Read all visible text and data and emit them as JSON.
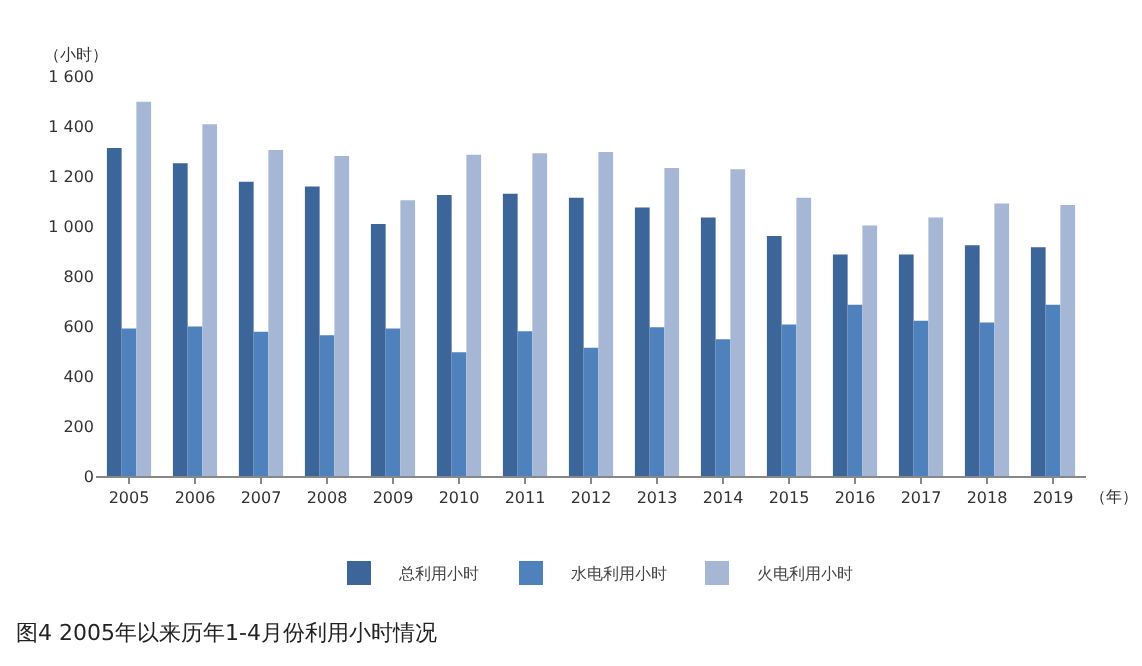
{
  "chart_data": {
    "type": "bar",
    "categories": [
      "2005",
      "2006",
      "2007",
      "2008",
      "2009",
      "2010",
      "2011",
      "2012",
      "2013",
      "2014",
      "2015",
      "2016",
      "2017",
      "2018",
      "2019"
    ],
    "series": [
      {
        "name": "总利用小时",
        "color": "#3c6699",
        "values": [
          1312,
          1251,
          1177,
          1158,
          1008,
          1124,
          1129,
          1113,
          1074,
          1034,
          960,
          886,
          886,
          923,
          915
        ]
      },
      {
        "name": "水电利用小时",
        "color": "#4f81bd",
        "values": [
          590,
          598,
          577,
          563,
          590,
          495,
          579,
          513,
          595,
          547,
          606,
          685,
          621,
          614,
          685
        ]
      },
      {
        "name": "火电利用小时",
        "color": "#a6b7d6",
        "values": [
          1497,
          1407,
          1304,
          1280,
          1103,
          1285,
          1291,
          1296,
          1232,
          1227,
          1113,
          1002,
          1034,
          1090,
          1084
        ]
      }
    ],
    "ylabel": "（小时）",
    "xlabel": "（年）",
    "ylim": [
      0,
      1600
    ],
    "yticks": [
      0,
      200,
      400,
      600,
      800,
      {
        "value": 1000,
        "label": "1 000"
      },
      {
        "value": 1200,
        "label": "1 200"
      },
      {
        "value": 1400,
        "label": "1 400"
      },
      {
        "value": 1600,
        "label": "1 600"
      }
    ],
    "legend": "bottom",
    "annotations": [
      "图4 2005年以来历年1-4月份利用小时情况"
    ]
  }
}
